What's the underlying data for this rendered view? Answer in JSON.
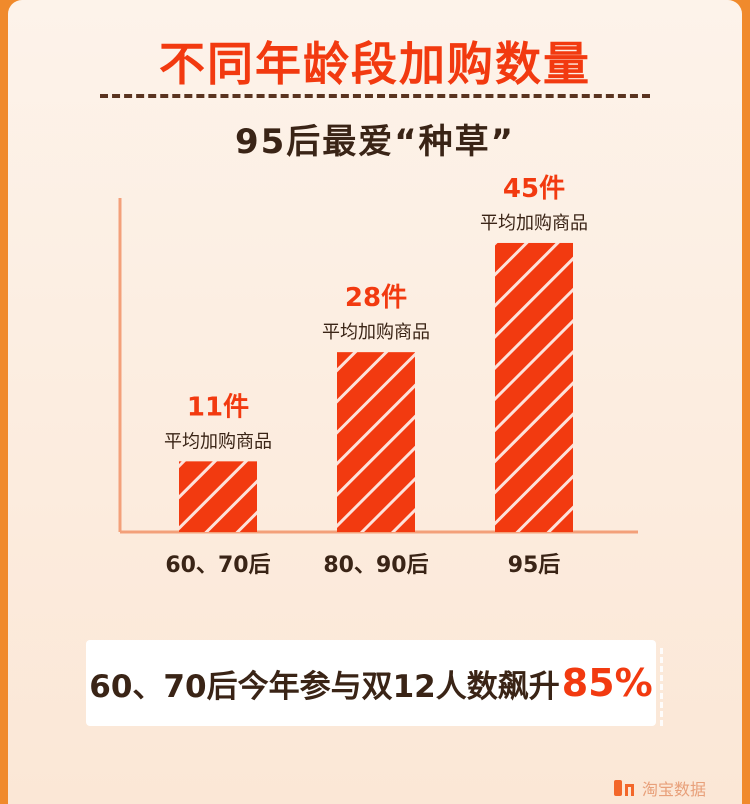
{
  "header": {
    "title": "不同年龄段加购数量",
    "subtitle": "95后最爱“种草”"
  },
  "colors": {
    "accent": "#f23a10",
    "bar": "#f23a10",
    "text_dark": "#3a2416",
    "axis": "#f3a07a"
  },
  "chart_data": {
    "type": "bar",
    "categories": [
      "60、70后",
      "80、90后",
      "95后"
    ],
    "values": [
      11,
      28,
      45
    ],
    "value_labels": [
      "11件",
      "28件",
      "45件"
    ],
    "data_label_caption": "平均加购商品",
    "ylim": [
      0,
      52
    ],
    "grid": false,
    "legend": "none"
  },
  "banner": {
    "text": "60、70后今年参与双12人数飙升",
    "highlight": "85%"
  },
  "brand": {
    "logo_icon": "brand-logo-icon",
    "text": "淘宝数据"
  }
}
